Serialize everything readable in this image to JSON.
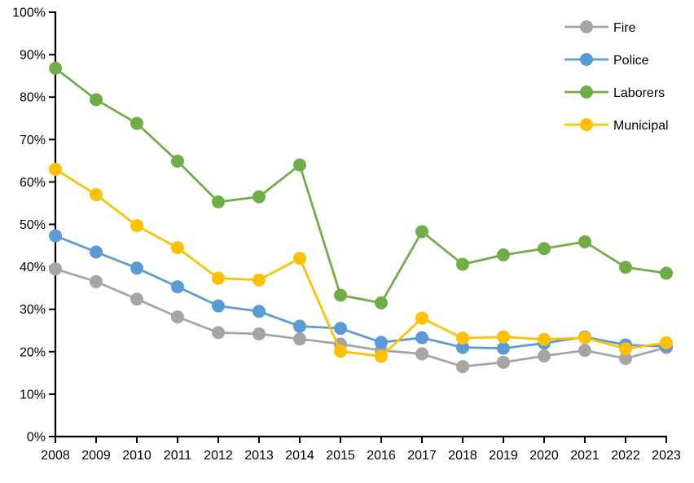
{
  "chart_data": {
    "type": "line",
    "title": "",
    "xlabel": "",
    "ylabel": "",
    "categories": [
      "2008",
      "2009",
      "2010",
      "2011",
      "2012",
      "2013",
      "2014",
      "2015",
      "2016",
      "2017",
      "2018",
      "2019",
      "2020",
      "2021",
      "2022",
      "2023"
    ],
    "series": [
      {
        "name": "Fire",
        "color": "#A5A5A5",
        "values": [
          39.5,
          36.5,
          32.4,
          28.2,
          24.5,
          24.2,
          23.0,
          21.8,
          20.3,
          19.5,
          16.5,
          17.5,
          19.0,
          20.3,
          18.4,
          21.0
        ]
      },
      {
        "name": "Police",
        "color": "#5B9BD5",
        "values": [
          47.3,
          43.5,
          39.7,
          35.3,
          30.8,
          29.5,
          26.0,
          25.5,
          22.2,
          23.3,
          21.0,
          20.8,
          22.0,
          23.5,
          21.6,
          21.2
        ]
      },
      {
        "name": "Laborers",
        "color": "#70AD47",
        "values": [
          86.8,
          79.4,
          73.8,
          64.9,
          55.3,
          56.5,
          64.0,
          33.3,
          31.5,
          48.3,
          40.6,
          42.8,
          44.3,
          45.9,
          39.9,
          38.5
        ]
      },
      {
        "name": "Municipal",
        "color": "#FFC000",
        "values": [
          63.0,
          57.0,
          49.7,
          44.5,
          37.3,
          36.9,
          42.0,
          20.1,
          18.9,
          27.9,
          23.2,
          23.5,
          22.9,
          23.3,
          20.7,
          22.1
        ]
      }
    ],
    "ylim": [
      0,
      100
    ],
    "ytick_step": 10,
    "y_tick_labels": [
      "0%",
      "10%",
      "20%",
      "30%",
      "40%",
      "50%",
      "60%",
      "70%",
      "80%",
      "90%",
      "100%"
    ],
    "grid": false,
    "legend_position": "top-right",
    "axis_color": "#000000",
    "background": "#FFFFFF",
    "marker": "circle"
  }
}
